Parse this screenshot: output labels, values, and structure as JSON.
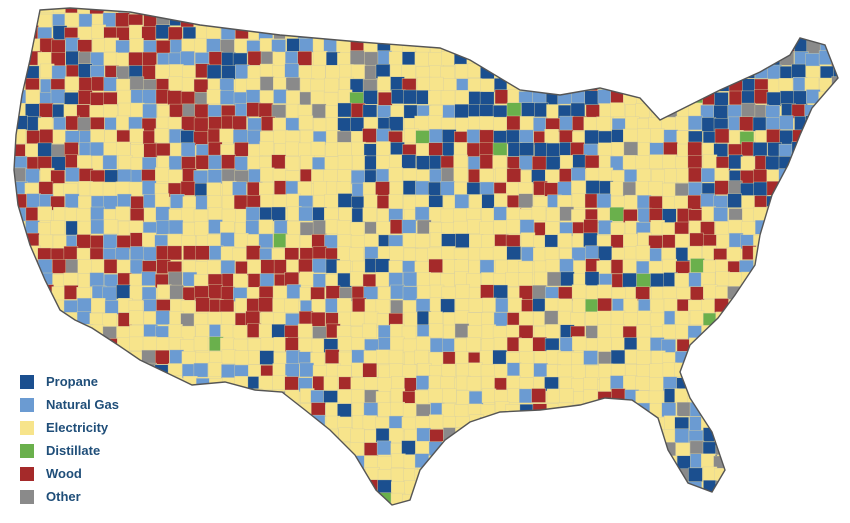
{
  "map": {
    "legend": [
      {
        "label": "Propane",
        "color": "#1b4f8f"
      },
      {
        "label": "Natural Gas",
        "color": "#6b9bd2"
      },
      {
        "label": "Electricity",
        "color": "#f7e48b"
      },
      {
        "label": "Distillate",
        "color": "#6ab04c"
      },
      {
        "label": "Wood",
        "color": "#a52a2a"
      },
      {
        "label": "Other",
        "color": "#8a8a8a"
      }
    ],
    "outline_color": "#555555",
    "base_color": "#f7e48b"
  }
}
